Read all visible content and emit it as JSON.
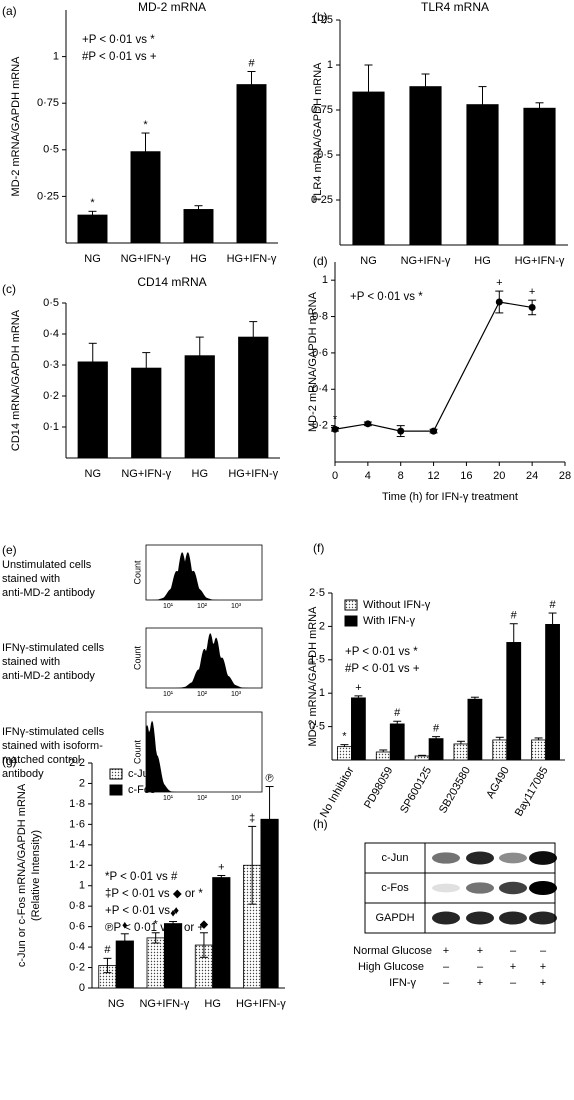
{
  "chart_data": [
    {
      "type": "bar",
      "panel": "(a)",
      "title": "MD-2 mRNA",
      "y_label": [
        "MD-2 mRNA/GAPDH mRNA"
      ],
      "notes": [
        "+P < 0·01 vs *",
        "#P < 0·01 vs +"
      ],
      "categories": [
        "NG",
        "NG+IFN-γ",
        "HG",
        "HG+IFN-γ"
      ],
      "series": [
        {
          "color": "#000000",
          "values": [
            0.15,
            0.49,
            0.18,
            0.85
          ],
          "errors": [
            0.02,
            0.1,
            0.02,
            0.07
          ],
          "annotations": [
            "*",
            "*",
            null,
            "#"
          ]
        }
      ],
      "error_bars": "up",
      "ylim": [
        0,
        1.25
      ],
      "yticks": [
        {
          "value": 0.25,
          "label": "0·25"
        },
        {
          "value": 0.5,
          "label": "0·5"
        },
        {
          "value": 0.75,
          "label": "0·75"
        },
        1
      ]
    },
    {
      "type": "bar",
      "panel": "(b)",
      "title": "TLR4 mRNA",
      "y_label": [
        "TLR4 mRNA/GAPDH mRNA"
      ],
      "categories": [
        "NG",
        "NG+IFN-γ",
        "HG",
        "HG+IFN-γ"
      ],
      "series": [
        {
          "color": "#000000",
          "values": [
            0.85,
            0.88,
            0.78,
            0.76
          ],
          "errors": [
            0.15,
            0.07,
            0.1,
            0.03
          ]
        }
      ],
      "error_bars": "up",
      "ylim": [
        0,
        1.25
      ],
      "yticks": [
        {
          "value": 0.25,
          "label": "0·25"
        },
        {
          "value": 0.5,
          "label": "0·5"
        },
        {
          "value": 0.75,
          "label": "0·75"
        },
        1,
        {
          "value": 1.25,
          "label": "1·25"
        }
      ]
    },
    {
      "type": "bar",
      "panel": "(c)",
      "title": "CD14 mRNA",
      "y_label": [
        "CD14 mRNA/GAPDH mRNA"
      ],
      "categories": [
        "NG",
        "NG+IFN-γ",
        "HG",
        "HG+IFN-γ"
      ],
      "series": [
        {
          "color": "#000000",
          "values": [
            0.31,
            0.29,
            0.33,
            0.39
          ],
          "errors": [
            0.06,
            0.05,
            0.06,
            0.05
          ]
        }
      ],
      "error_bars": "up",
      "ylim": [
        0,
        0.5
      ],
      "yticks": [
        {
          "value": 0.1,
          "label": "0·1"
        },
        {
          "value": 0.2,
          "label": "0·2"
        },
        {
          "value": 0.3,
          "label": "0·3"
        },
        {
          "value": 0.4,
          "label": "0·4"
        },
        {
          "value": 0.5,
          "label": "0·5"
        }
      ]
    },
    {
      "type": "line",
      "panel": "(d)",
      "y_label": [
        "MD-2 mRNA/GAPDH mRNA"
      ],
      "x_label": "Time (h) for IFN-γ treatment",
      "notes": [
        "+P < 0·01 vs *"
      ],
      "x": [
        0,
        4,
        8,
        12,
        20,
        24
      ],
      "series": [
        {
          "color": "#000000",
          "values": [
            0.18,
            0.21,
            0.17,
            0.17,
            0.88,
            0.85
          ],
          "errors": [
            0.01,
            0.01,
            0.03,
            0.01,
            0.06,
            0.04
          ],
          "annotations": [
            "*",
            null,
            null,
            null,
            "+",
            "+"
          ]
        }
      ],
      "error_bars": "both",
      "xlim": [
        0,
        28
      ],
      "xticks": [
        0,
        4,
        8,
        12,
        16,
        20,
        24,
        28
      ],
      "ylim": [
        0,
        1.1
      ],
      "yticks": [
        {
          "value": 0.2,
          "label": "0·2"
        },
        {
          "value": 0.4,
          "label": "0·4"
        },
        {
          "value": 0.6,
          "label": "0·6"
        },
        {
          "value": 0.8,
          "label": "0·8"
        },
        1
      ]
    },
    {
      "type": "bar",
      "panel": "(f)",
      "y_label": [
        "MD-2 mRNA/GAPDH mRNA"
      ],
      "notes": [
        "+P < 0·01 vs *",
        "#P < 0·01 vs +"
      ],
      "categories": [
        "No Inhibitor",
        "PD98059",
        "SP600125",
        "SB203580",
        "AG490",
        "Bay117085"
      ],
      "series": [
        {
          "name": "Without IFN-γ",
          "color": "#ffffff",
          "pattern": "dots",
          "values": [
            0.2,
            0.12,
            0.06,
            0.24,
            0.3,
            0.3
          ],
          "errors": [
            0.03,
            0.03,
            0.01,
            0.04,
            0.04,
            0.03
          ],
          "annotations": [
            "*",
            null,
            null,
            null,
            null,
            null
          ]
        },
        {
          "name": "With IFN-γ",
          "color": "#000000",
          "values": [
            0.93,
            0.54,
            0.32,
            0.91,
            1.76,
            2.03
          ],
          "errors": [
            0.03,
            0.04,
            0.03,
            0.03,
            0.28,
            0.17
          ],
          "annotations": [
            "+",
            "#",
            "#",
            null,
            "#",
            "#"
          ]
        }
      ],
      "error_bars": "up",
      "ylim": [
        0,
        2.5
      ],
      "rotate_categories": true,
      "yticks": [
        {
          "value": 0.5,
          "label": "0·5"
        },
        1,
        {
          "value": 1.5,
          "label": "1·5"
        },
        2,
        {
          "value": 2.5,
          "label": "2·5"
        }
      ]
    },
    {
      "type": "bar",
      "panel": "(g)",
      "y_label": [
        "c-Jun or c-Fos mRNA/GAPDH mRNA",
        "(Relative Intensity)"
      ],
      "notes": [
        "*P < 0·01 vs #",
        "‡P < 0·01 vs ◆ or *",
        "+P < 0·01 vs ♦",
        "℗P < 0·01 vs ♦ or +"
      ],
      "categories": [
        "NG",
        "NG+IFN-γ",
        "HG",
        "HG+IFN-γ"
      ],
      "series": [
        {
          "name": "c-Jun",
          "color": "#ffffff",
          "pattern": "dots",
          "values": [
            0.22,
            0.49,
            0.42,
            1.2
          ],
          "errors": [
            0.07,
            0.05,
            0.12,
            0.38
          ],
          "annotations": [
            "#",
            "*",
            "◆",
            "‡"
          ]
        },
        {
          "name": "c-Fos",
          "color": "#000000",
          "values": [
            0.46,
            0.63,
            1.08,
            1.65
          ],
          "errors": [
            0.07,
            0.02,
            0.02,
            0.32
          ],
          "annotations": [
            "♦",
            "♦",
            "+",
            "℗"
          ]
        }
      ],
      "error_bars": "both",
      "ylim": [
        0,
        2.2
      ],
      "yticks": [
        0,
        {
          "value": 0.2,
          "label": "0·2"
        },
        {
          "value": 0.4,
          "label": "0·4"
        },
        {
          "value": 0.6,
          "label": "0·6"
        },
        {
          "value": 0.8,
          "label": "0·8"
        },
        1,
        {
          "value": 1.2,
          "label": "1·2"
        },
        {
          "value": 1.4,
          "label": "1·4"
        },
        {
          "value": 1.6,
          "label": "1·6"
        },
        {
          "value": 1.8,
          "label": "1·8"
        },
        2,
        {
          "value": 2.2,
          "label": "2·2"
        }
      ]
    }
  ],
  "flow_cytometry": {
    "panel": "(e)",
    "y_label": "Count",
    "x_tick_labels": [
      "10¹",
      "10²",
      "10³"
    ],
    "rows": [
      {
        "label": [
          "Unstimulated cells",
          "stained with",
          "anti-MD-2 antibody"
        ]
      },
      {
        "label": [
          "IFNγ-stimulated cells",
          "stained with",
          "anti-MD-2 antibody"
        ]
      },
      {
        "label": [
          "IFNγ-stimulated cells",
          "stained with isoform-",
          "matched control",
          "antibody"
        ]
      }
    ]
  },
  "western_blot": {
    "panel": "(h)",
    "bands": [
      "c-Jun",
      "c-Fos",
      "GAPDH"
    ],
    "conditions": [
      {
        "label": "Normal Glucose",
        "marks": [
          "+",
          "+",
          "–",
          "–"
        ]
      },
      {
        "label": "High Glucose",
        "marks": [
          "–",
          "–",
          "+",
          "+"
        ]
      },
      {
        "label": "IFN-γ",
        "marks": [
          "–",
          "+",
          "–",
          "+"
        ]
      }
    ]
  }
}
